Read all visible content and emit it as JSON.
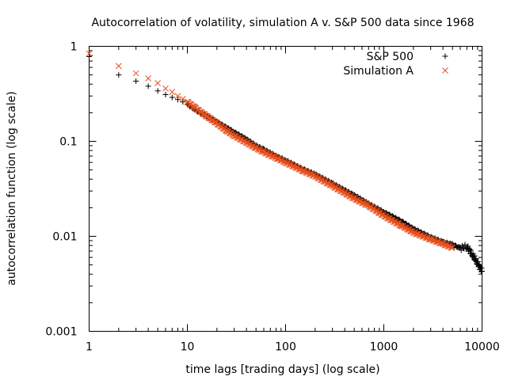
{
  "chart_data": {
    "type": "scatter",
    "title": "Autocorrelation of volatility, simulation A v. S&P 500 data since 1968",
    "xlabel": "time lags [trading days] (log scale)",
    "ylabel": "autocorrelation function (log scale)",
    "xscale": "log",
    "yscale": "log",
    "xlim": [
      1,
      10000
    ],
    "ylim": [
      0.001,
      1
    ],
    "xticks": [
      {
        "value": 1,
        "label": "1"
      },
      {
        "value": 10,
        "label": "10"
      },
      {
        "value": 100,
        "label": "100"
      },
      {
        "value": 1000,
        "label": "1000"
      },
      {
        "value": 10000,
        "label": "10000"
      }
    ],
    "yticks": [
      {
        "value": 0.001,
        "label": "0.001"
      },
      {
        "value": 0.01,
        "label": "0.01"
      },
      {
        "value": 0.1,
        "label": "0.1"
      },
      {
        "value": 1,
        "label": "1"
      }
    ],
    "legend_position": "top-right",
    "series": [
      {
        "name": "S&P 500",
        "marker": "plus",
        "color": "#000000",
        "x": [
          1,
          2,
          3,
          4,
          5,
          6,
          7,
          8,
          9,
          10,
          12,
          15,
          20,
          25,
          30,
          40,
          50,
          60,
          80,
          100,
          150,
          200,
          300,
          500,
          700,
          1000,
          1500,
          2000,
          3000,
          4000,
          5000,
          6000,
          7000,
          8000,
          9000,
          10000
        ],
        "y": [
          0.78,
          0.5,
          0.43,
          0.38,
          0.34,
          0.31,
          0.29,
          0.275,
          0.26,
          0.245,
          0.215,
          0.19,
          0.16,
          0.14,
          0.125,
          0.105,
          0.09,
          0.082,
          0.07,
          0.063,
          0.051,
          0.045,
          0.036,
          0.027,
          0.022,
          0.018,
          0.0145,
          0.012,
          0.0098,
          0.0087,
          0.0082,
          0.0075,
          0.0078,
          0.0064,
          0.0052,
          0.0043
        ]
      },
      {
        "name": "Simulation A",
        "marker": "cross",
        "color": "#e8501e",
        "x": [
          1,
          2,
          3,
          4,
          5,
          6,
          7,
          8,
          9,
          10,
          12,
          15,
          20,
          25,
          30,
          40,
          50,
          60,
          80,
          100,
          150,
          200,
          300,
          500,
          700,
          1000,
          1500,
          2000,
          3000,
          4000,
          5000
        ],
        "y": [
          0.84,
          0.62,
          0.52,
          0.46,
          0.41,
          0.36,
          0.33,
          0.3,
          0.28,
          0.26,
          0.225,
          0.19,
          0.155,
          0.13,
          0.115,
          0.097,
          0.085,
          0.077,
          0.067,
          0.06,
          0.049,
          0.043,
          0.034,
          0.025,
          0.021,
          0.0165,
          0.013,
          0.011,
          0.0093,
          0.0083,
          0.0076
        ]
      }
    ]
  }
}
